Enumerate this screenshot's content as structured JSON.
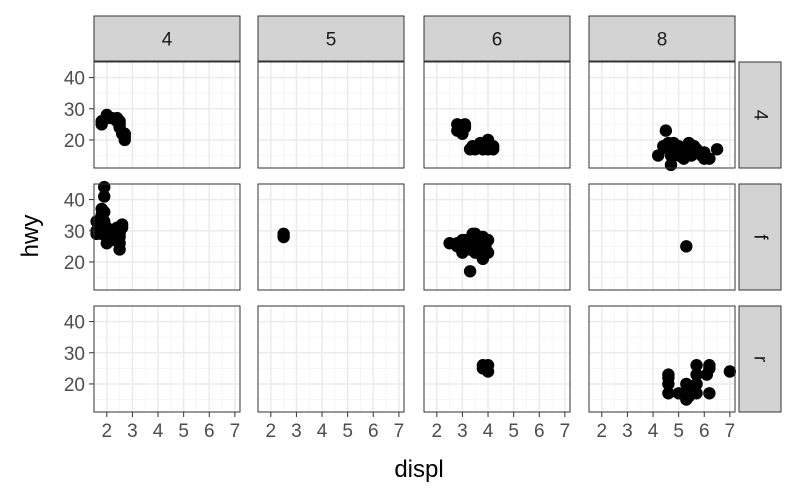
{
  "chart_data": {
    "type": "scatter",
    "layout": "facet_grid",
    "xlabel": "displ",
    "ylabel": "hwy",
    "xlim": [
      1.5,
      7.2
    ],
    "ylim": [
      11,
      45
    ],
    "xticks": [
      2,
      3,
      4,
      5,
      6,
      7
    ],
    "yticks": [
      20,
      30,
      40
    ],
    "grid": true,
    "theme": "bw",
    "point_color": "#000000",
    "col_facets": [
      "4",
      "5",
      "6",
      "8"
    ],
    "row_facets": [
      "4",
      "f",
      "r"
    ],
    "panels": [
      {
        "row": "4",
        "col": "4",
        "points": [
          [
            1.8,
            25
          ],
          [
            1.8,
            26
          ],
          [
            2.0,
            28
          ],
          [
            2.0,
            27
          ],
          [
            2.2,
            27
          ],
          [
            2.4,
            27
          ],
          [
            2.4,
            26
          ],
          [
            2.5,
            24
          ],
          [
            2.5,
            25
          ],
          [
            2.5,
            26
          ],
          [
            2.6,
            22
          ],
          [
            2.7,
            21
          ],
          [
            2.7,
            20
          ],
          [
            2.7,
            22
          ]
        ]
      },
      {
        "row": "4",
        "col": "5",
        "points": []
      },
      {
        "row": "4",
        "col": "6",
        "points": [
          [
            2.8,
            25
          ],
          [
            2.8,
            23
          ],
          [
            3.0,
            22
          ],
          [
            3.1,
            25
          ],
          [
            3.1,
            24
          ],
          [
            3.3,
            17
          ],
          [
            3.4,
            18
          ],
          [
            3.5,
            17
          ],
          [
            3.7,
            19
          ],
          [
            3.7,
            18
          ],
          [
            3.8,
            17
          ],
          [
            4.0,
            17
          ],
          [
            4.0,
            19
          ],
          [
            4.0,
            20
          ],
          [
            4.2,
            17
          ],
          [
            4.2,
            18
          ]
        ]
      },
      {
        "row": "4",
        "col": "8",
        "points": [
          [
            4.2,
            15
          ],
          [
            4.4,
            18
          ],
          [
            4.5,
            23
          ],
          [
            4.6,
            17
          ],
          [
            4.6,
            19
          ],
          [
            4.7,
            12
          ],
          [
            4.7,
            15
          ],
          [
            4.7,
            17
          ],
          [
            4.8,
            16
          ],
          [
            4.8,
            19
          ],
          [
            5.0,
            18
          ],
          [
            5.0,
            15
          ],
          [
            5.2,
            17
          ],
          [
            5.2,
            14
          ],
          [
            5.3,
            16
          ],
          [
            5.4,
            19
          ],
          [
            5.4,
            17
          ],
          [
            5.5,
            15
          ],
          [
            5.6,
            18
          ],
          [
            5.7,
            16
          ],
          [
            5.7,
            17
          ],
          [
            5.9,
            15
          ],
          [
            6.0,
            14
          ],
          [
            6.0,
            16
          ],
          [
            6.2,
            14
          ],
          [
            6.5,
            17
          ]
        ]
      },
      {
        "row": "f",
        "col": "4",
        "points": [
          [
            1.6,
            29
          ],
          [
            1.6,
            30
          ],
          [
            1.6,
            33
          ],
          [
            1.8,
            29
          ],
          [
            1.8,
            31
          ],
          [
            1.8,
            35
          ],
          [
            1.8,
            37
          ],
          [
            1.8,
            32
          ],
          [
            1.9,
            36
          ],
          [
            1.9,
            44
          ],
          [
            1.9,
            41
          ],
          [
            1.9,
            33
          ],
          [
            2.0,
            29
          ],
          [
            2.0,
            30
          ],
          [
            2.0,
            31
          ],
          [
            2.0,
            28
          ],
          [
            2.0,
            26
          ],
          [
            2.2,
            27
          ],
          [
            2.2,
            28
          ],
          [
            2.2,
            29
          ],
          [
            2.4,
            31
          ],
          [
            2.4,
            30
          ],
          [
            2.4,
            27
          ],
          [
            2.5,
            24
          ],
          [
            2.5,
            26
          ],
          [
            2.5,
            28
          ],
          [
            2.5,
            29
          ],
          [
            2.6,
            32
          ],
          [
            2.6,
            31
          ]
        ]
      },
      {
        "row": "f",
        "col": "5",
        "points": [
          [
            2.5,
            28
          ],
          [
            2.5,
            29
          ]
        ]
      },
      {
        "row": "f",
        "col": "6",
        "points": [
          [
            2.5,
            26
          ],
          [
            2.8,
            25
          ],
          [
            2.8,
            26
          ],
          [
            3.0,
            23
          ],
          [
            3.0,
            24
          ],
          [
            3.0,
            27
          ],
          [
            3.1,
            26
          ],
          [
            3.1,
            27
          ],
          [
            3.3,
            17
          ],
          [
            3.3,
            24
          ],
          [
            3.3,
            26
          ],
          [
            3.4,
            29
          ],
          [
            3.5,
            25
          ],
          [
            3.5,
            28
          ],
          [
            3.5,
            29
          ],
          [
            3.5,
            27
          ],
          [
            3.5,
            23
          ],
          [
            3.6,
            26
          ],
          [
            3.7,
            24
          ],
          [
            3.8,
            26
          ],
          [
            3.8,
            21
          ],
          [
            3.8,
            28
          ],
          [
            3.8,
            23
          ],
          [
            3.9,
            25
          ],
          [
            4.0,
            23
          ],
          [
            4.0,
            27
          ]
        ]
      },
      {
        "row": "f",
        "col": "8",
        "points": [
          [
            5.3,
            25
          ]
        ]
      },
      {
        "row": "r",
        "col": "4",
        "points": []
      },
      {
        "row": "r",
        "col": "5",
        "points": []
      },
      {
        "row": "r",
        "col": "6",
        "points": [
          [
            3.8,
            26
          ],
          [
            3.8,
            25
          ],
          [
            3.9,
            25
          ],
          [
            4.0,
            24
          ],
          [
            4.0,
            26
          ]
        ]
      },
      {
        "row": "r",
        "col": "8",
        "points": [
          [
            4.6,
            17
          ],
          [
            4.6,
            20
          ],
          [
            4.6,
            22
          ],
          [
            4.6,
            23
          ],
          [
            5.0,
            17
          ],
          [
            5.3,
            15
          ],
          [
            5.3,
            20
          ],
          [
            5.4,
            16
          ],
          [
            5.4,
            18
          ],
          [
            5.7,
            20
          ],
          [
            5.7,
            23
          ],
          [
            5.7,
            26
          ],
          [
            5.7,
            17
          ],
          [
            6.1,
            23
          ],
          [
            6.2,
            26
          ],
          [
            6.2,
            25
          ],
          [
            6.2,
            17
          ],
          [
            7.0,
            24
          ]
        ]
      }
    ]
  }
}
